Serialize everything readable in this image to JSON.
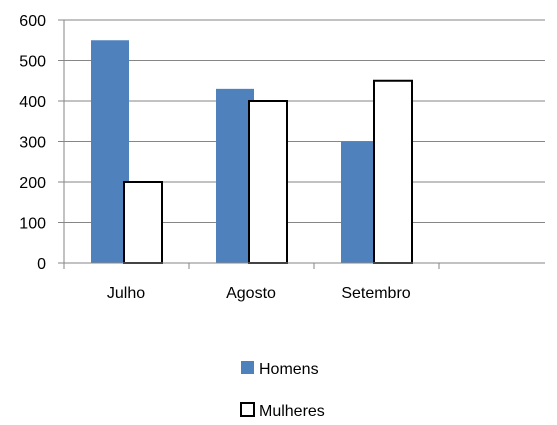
{
  "chart_data": {
    "type": "bar",
    "categories": [
      "Julho",
      "Agosto",
      "Setembro"
    ],
    "series": [
      {
        "name": "Homens",
        "values": [
          550,
          430,
          300
        ]
      },
      {
        "name": "Mulheres",
        "values": [
          200,
          400,
          450
        ]
      }
    ],
    "title": "",
    "xlabel": "",
    "ylabel": "",
    "ylim": [
      0,
      600
    ],
    "yticks": [
      0,
      100,
      200,
      300,
      400,
      500,
      600
    ],
    "grid": true,
    "legend_position": "bottom",
    "colors": {
      "homens_fill": "#4f81bd",
      "mulheres_fill": "#ffffff",
      "mulheres_stroke": "#000000",
      "grid": "#868686",
      "axis": "#868686"
    }
  }
}
